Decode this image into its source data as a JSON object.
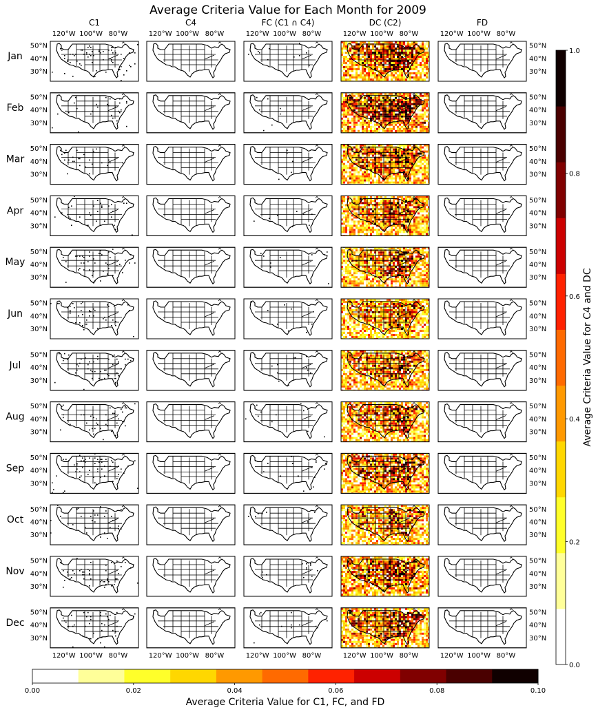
{
  "chart_data": {
    "type": "heatmap",
    "title": "Average Criteria Value for Each Month for 2009",
    "columns": [
      "C1",
      "C4",
      "FC (C1 ∩ C4)",
      "DC (C2)",
      "FD"
    ],
    "rows": [
      "Jan",
      "Feb",
      "Mar",
      "Apr",
      "May",
      "Jun",
      "Jul",
      "Aug",
      "Sep",
      "Oct",
      "Nov",
      "Dec"
    ],
    "lon_ticks": [
      "120°W",
      "100°W",
      "80°W"
    ],
    "lat_ticks": [
      "50°N",
      "40°N",
      "30°N"
    ],
    "map_extent": {
      "lon": [
        -130,
        -65
      ],
      "lat": [
        22,
        53
      ]
    },
    "dc_intensity_by_month": [
      0.45,
      0.55,
      0.4,
      0.35,
      0.35,
      0.3,
      0.35,
      0.35,
      0.4,
      0.3,
      0.45,
      0.4
    ],
    "c1_speckle_by_month": [
      0.05,
      0.03,
      0.03,
      0.03,
      0.04,
      0.04,
      0.05,
      0.04,
      0.05,
      0.03,
      0.05,
      0.04
    ],
    "colorbar_vertical": {
      "label": "Average Criteria Value for C4 and DC",
      "range": [
        0,
        1
      ],
      "ticks": [
        "0.0",
        "0.2",
        "0.4",
        "0.6",
        "0.8",
        "1.0"
      ],
      "tick_values": [
        0,
        0.2,
        0.4,
        0.6,
        0.8,
        1.0
      ]
    },
    "colorbar_horizontal": {
      "label": "Average Criteria Value for C1, FC, and FD",
      "range": [
        0,
        0.1
      ],
      "ticks": [
        "0.00",
        "0.02",
        "0.04",
        "0.06",
        "0.08",
        "0.10"
      ],
      "tick_values": [
        0,
        0.02,
        0.04,
        0.06,
        0.08,
        0.1
      ]
    },
    "colormap_levels": [
      "#ffffff",
      "#ffff99",
      "#ffff2a",
      "#ffd700",
      "#ff9900",
      "#ff6a00",
      "#ff2200",
      "#cc0000",
      "#800000",
      "#4a0000",
      "#100000"
    ],
    "grid": false
  }
}
